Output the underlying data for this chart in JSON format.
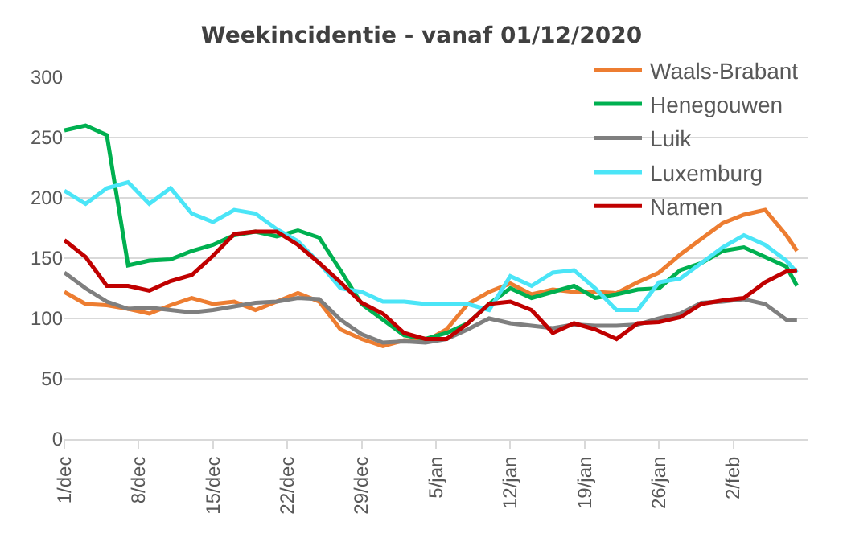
{
  "chart_data": {
    "type": "line",
    "title": "Weekincidentie - vanaf 01/12/2020",
    "x": [
      "2020-12-01",
      "2020-12-03",
      "2020-12-05",
      "2020-12-07",
      "2020-12-09",
      "2020-12-11",
      "2020-12-13",
      "2020-12-15",
      "2020-12-17",
      "2020-12-19",
      "2020-12-21",
      "2020-12-23",
      "2020-12-25",
      "2020-12-27",
      "2020-12-29",
      "2020-12-31",
      "2021-01-02",
      "2021-01-04",
      "2021-01-06",
      "2021-01-08",
      "2021-01-10",
      "2021-01-12",
      "2021-01-14",
      "2021-01-16",
      "2021-01-18",
      "2021-01-20",
      "2021-01-22",
      "2021-01-24",
      "2021-01-26",
      "2021-01-28",
      "2021-01-30",
      "2021-02-01",
      "2021-02-03",
      "2021-02-05",
      "2021-02-07",
      "2021-02-08"
    ],
    "series": [
      {
        "name": "Waals-Brabant",
        "color": "#ed7d31",
        "values": [
          122,
          112,
          111,
          108,
          104,
          111,
          117,
          112,
          114,
          107,
          114,
          121,
          114,
          91,
          83,
          77,
          82,
          81,
          91,
          112,
          122,
          129,
          120,
          124,
          122,
          122,
          121,
          130,
          138,
          153,
          166,
          179,
          186,
          190,
          169,
          156
        ]
      },
      {
        "name": "Henegouwen",
        "color": "#00b050",
        "values": [
          256,
          260,
          252,
          144,
          148,
          149,
          156,
          161,
          169,
          172,
          168,
          173,
          167,
          140,
          112,
          99,
          86,
          83,
          88,
          96,
          112,
          125,
          117,
          122,
          127,
          117,
          120,
          124,
          125,
          140,
          146,
          156,
          159,
          151,
          143,
          127
        ]
      },
      {
        "name": "Luik",
        "color": "#7f7f7f",
        "values": [
          138,
          125,
          114,
          108,
          109,
          107,
          105,
          107,
          110,
          113,
          114,
          117,
          116,
          99,
          87,
          80,
          81,
          80,
          83,
          91,
          100,
          96,
          94,
          92,
          95,
          94,
          94,
          95,
          100,
          104,
          113,
          114,
          116,
          112,
          99,
          99
        ]
      },
      {
        "name": "Luxemburg",
        "color": "#4be5f7",
        "values": [
          206,
          195,
          208,
          213,
          195,
          208,
          187,
          180,
          190,
          187,
          174,
          164,
          146,
          125,
          122,
          114,
          114,
          112,
          112,
          112,
          107,
          135,
          127,
          138,
          140,
          125,
          107,
          107,
          130,
          133,
          146,
          159,
          169,
          161,
          148,
          138
        ]
      },
      {
        "name": "Namen",
        "color": "#c00000",
        "values": [
          165,
          151,
          127,
          127,
          123,
          131,
          136,
          152,
          170,
          172,
          172,
          161,
          146,
          130,
          113,
          104,
          88,
          83,
          83,
          96,
          112,
          114,
          107,
          88,
          96,
          91,
          83,
          96,
          97,
          101,
          112,
          115,
          117,
          130,
          139,
          140
        ]
      }
    ],
    "xlim": [
      "2020-12-01",
      "2021-02-09"
    ],
    "xticks": [
      {
        "value": "2020-12-01",
        "label": "1/dec"
      },
      {
        "value": "2020-12-08",
        "label": "8/dec"
      },
      {
        "value": "2020-12-15",
        "label": "15/dec"
      },
      {
        "value": "2020-12-22",
        "label": "22/dec"
      },
      {
        "value": "2020-12-29",
        "label": "29/dec"
      },
      {
        "value": "2021-01-05",
        "label": "5/jan"
      },
      {
        "value": "2021-01-12",
        "label": "12/jan"
      },
      {
        "value": "2021-01-19",
        "label": "19/jan"
      },
      {
        "value": "2021-01-26",
        "label": "26/jan"
      },
      {
        "value": "2021-02-02",
        "label": "2/feb"
      }
    ],
    "ylim": [
      0,
      300
    ],
    "yticks": [
      0,
      50,
      100,
      150,
      200,
      250,
      300
    ],
    "grid": "y",
    "legend": "top right",
    "marker": "none",
    "line_style": "solid"
  }
}
